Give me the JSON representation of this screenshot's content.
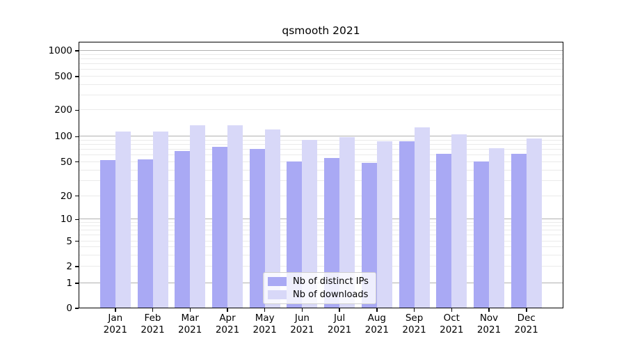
{
  "chart_data": {
    "type": "bar",
    "title": "qsmooth 2021",
    "categories": [
      "Jan 2021",
      "Feb 2021",
      "Mar 2021",
      "Apr 2021",
      "May 2021",
      "Jun 2021",
      "Jul 2021",
      "Aug 2021",
      "Sep 2021",
      "Oct 2021",
      "Nov 2021",
      "Dec 2021"
    ],
    "series": [
      {
        "name": "Nb of distinct IPs",
        "color": "#a9a9f4",
        "values": [
          53,
          54,
          68,
          75,
          72,
          51,
          56,
          49,
          89,
          63,
          51,
          62
        ]
      },
      {
        "name": "Nb of downloads",
        "color": "#d8d8f8",
        "values": [
          114,
          114,
          135,
          135,
          120,
          91,
          98,
          88,
          128,
          106,
          73,
          96
        ]
      }
    ],
    "xlabel": "",
    "ylabel": "",
    "yscale": "log-like (0 baseline with log decades)",
    "ylim": [
      0,
      1270
    ],
    "y_ticks": [
      0,
      1,
      2,
      5,
      10,
      20,
      50,
      100,
      200,
      500,
      1000
    ],
    "major_gridline_values": [
      1,
      10,
      100,
      1000
    ],
    "minor_gridline_values": [
      2,
      3,
      4,
      5,
      6,
      7,
      8,
      9,
      20,
      30,
      40,
      50,
      60,
      70,
      80,
      90,
      200,
      300,
      400,
      500,
      600,
      700,
      800,
      900
    ],
    "y_anchor_fractions": {
      "0": 0,
      "1": 0.0947,
      "2": 0.1565,
      "5": 0.252,
      "10": 0.3334,
      "20": 0.4216,
      "50": 0.5492,
      "100": 0.6439,
      "200": 0.7435,
      "500": 0.8695,
      "1000": 0.9661
    },
    "grid": true,
    "legend_position": "lower center",
    "colors": {
      "major_grid": "#b0b0b0",
      "minor_grid": "#eaeaea",
      "axis_frame": "#000000",
      "text": "#000000",
      "background": "#ffffff"
    }
  }
}
